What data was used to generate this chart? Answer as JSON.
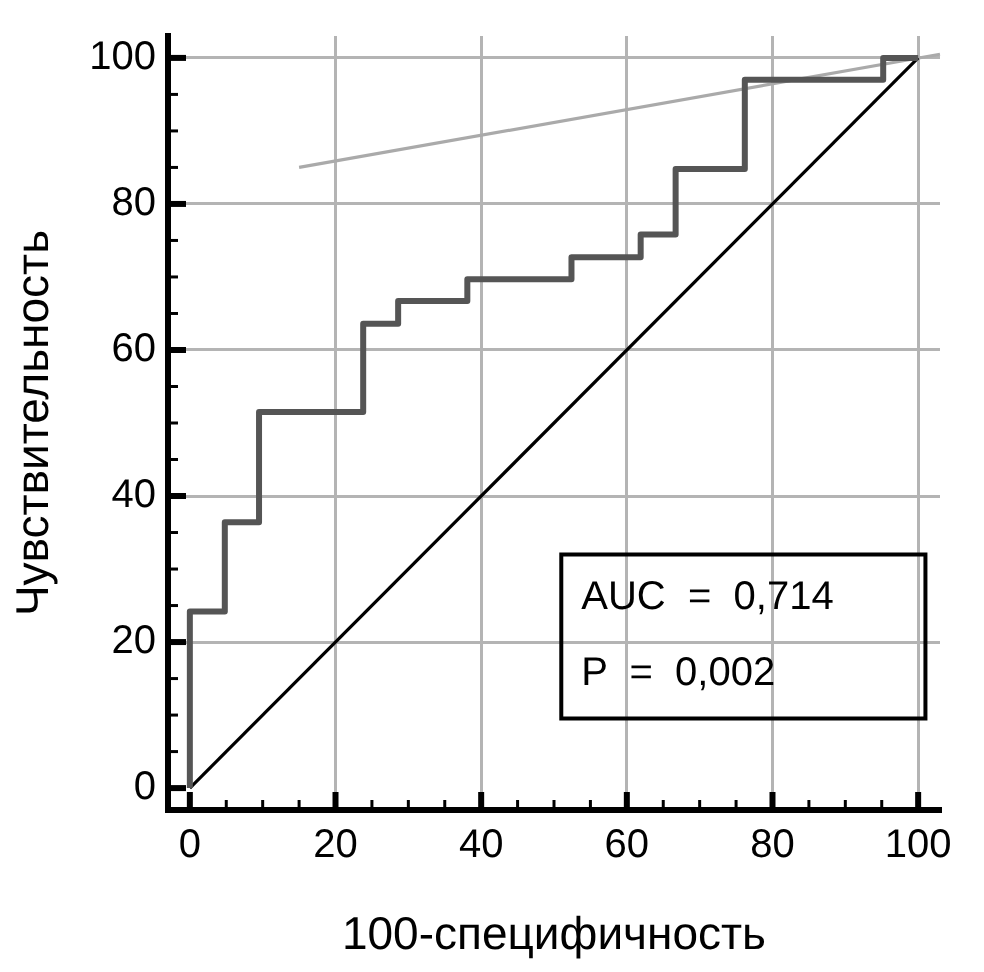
{
  "chart_data": {
    "type": "line",
    "xlabel": "100-специфичность",
    "ylabel": "Чувствительность",
    "series": [
      {
        "type": "step",
        "color": "#555555",
        "x": [
          0,
          0,
          4.8,
          9.5,
          23.8,
          28.6,
          38.1,
          52.4,
          61.9,
          66.7,
          76.2,
          95.2,
          100
        ],
        "values": [
          0,
          24.2,
          36.4,
          51.5,
          63.6,
          66.7,
          69.7,
          72.7,
          75.8,
          84.8,
          97,
          100,
          100
        ]
      },
      {
        "type": "line",
        "color": "#000000",
        "x": [
          0,
          100
        ],
        "values": [
          0,
          100
        ]
      },
      {
        "type": "line",
        "color": "#aaaaaa",
        "x": [
          15,
          103
        ],
        "values": [
          85,
          100.5
        ]
      }
    ],
    "xlim": [
      -3,
      103
    ],
    "ylim": [
      -3,
      103
    ],
    "xticks": [
      0,
      {
        "value": 5,
        "label": null
      },
      {
        "value": 10,
        "label": null
      },
      {
        "value": 15,
        "label": null
      },
      20,
      {
        "value": 25,
        "label": null
      },
      {
        "value": 30,
        "label": null
      },
      {
        "value": 35,
        "label": null
      },
      40,
      {
        "value": 45,
        "label": null
      },
      {
        "value": 50,
        "label": null
      },
      {
        "value": 55,
        "label": null
      },
      60,
      {
        "value": 65,
        "label": null
      },
      {
        "value": 70,
        "label": null
      },
      {
        "value": 75,
        "label": null
      },
      80,
      {
        "value": 85,
        "label": null
      },
      {
        "value": 90,
        "label": null
      },
      {
        "value": 95,
        "label": null
      },
      100
    ],
    "yticks": [
      0,
      {
        "value": 5,
        "label": null
      },
      {
        "value": 10,
        "label": null
      },
      {
        "value": 15,
        "label": null
      },
      20,
      {
        "value": 25,
        "label": null
      },
      {
        "value": 30,
        "label": null
      },
      {
        "value": 35,
        "label": null
      },
      40,
      {
        "value": 45,
        "label": null
      },
      {
        "value": 50,
        "label": null
      },
      {
        "value": 55,
        "label": null
      },
      60,
      {
        "value": 65,
        "label": null
      },
      {
        "value": 70,
        "label": null
      },
      {
        "value": 75,
        "label": null
      },
      80,
      {
        "value": 85,
        "label": null
      },
      {
        "value": 90,
        "label": null
      },
      {
        "value": 95,
        "label": null
      },
      100
    ],
    "annotations": [
      "AUC  =  0,714",
      "P  =  0,002"
    ],
    "grid": true,
    "legend": false,
    "marker": "none",
    "line_style": "solid"
  }
}
